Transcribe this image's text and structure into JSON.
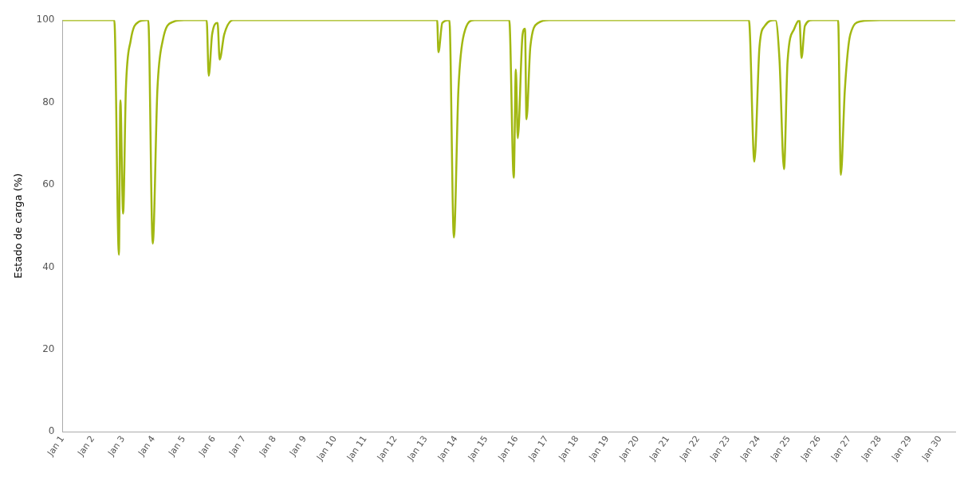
{
  "chart_data": {
    "type": "line",
    "ylabel": "Estado de carga (%)",
    "xlim": [
      "--01-01",
      "--01-30T12:00"
    ],
    "ylim": [
      0,
      100
    ],
    "yticks": [
      0,
      20,
      40,
      60,
      80,
      100
    ],
    "xticks": [
      {
        "value": "--01-01",
        "label": "Jan 1"
      },
      {
        "value": "--01-02",
        "label": "Jan 2"
      },
      {
        "value": "--01-03",
        "label": "Jan 3"
      },
      {
        "value": "--01-04",
        "label": "Jan 4"
      },
      {
        "value": "--01-05",
        "label": "Jan 5"
      },
      {
        "value": "--01-06",
        "label": "Jan 6"
      },
      {
        "value": "--01-07",
        "label": "Jan 7"
      },
      {
        "value": "--01-08",
        "label": "Jan 8"
      },
      {
        "value": "--01-09",
        "label": "Jan 9"
      },
      {
        "value": "--01-10",
        "label": "Jan 10"
      },
      {
        "value": "--01-11",
        "label": "Jan 11"
      },
      {
        "value": "--01-12",
        "label": "Jan 12"
      },
      {
        "value": "--01-13",
        "label": "Jan 13"
      },
      {
        "value": "--01-14",
        "label": "Jan 14"
      },
      {
        "value": "--01-15",
        "label": "Jan 15"
      },
      {
        "value": "--01-16",
        "label": "Jan 16"
      },
      {
        "value": "--01-17",
        "label": "Jan 17"
      },
      {
        "value": "--01-18",
        "label": "Jan 18"
      },
      {
        "value": "--01-19",
        "label": "Jan 19"
      },
      {
        "value": "--01-20",
        "label": "Jan 20"
      },
      {
        "value": "--01-21",
        "label": "Jan 21"
      },
      {
        "value": "--01-22",
        "label": "Jan 22"
      },
      {
        "value": "--01-23",
        "label": "Jan 23"
      },
      {
        "value": "--01-24",
        "label": "Jan 24"
      },
      {
        "value": "--01-25",
        "label": "Jan 25"
      },
      {
        "value": "--01-26",
        "label": "Jan 26"
      },
      {
        "value": "--01-27",
        "label": "Jan 27"
      },
      {
        "value": "--01-28",
        "label": "Jan 28"
      },
      {
        "value": "--01-29",
        "label": "Jan 29"
      },
      {
        "value": "--01-30",
        "label": "Jan 30"
      }
    ],
    "grid": false,
    "legend": false,
    "marker": "none",
    "line_style": "solid",
    "series": [
      {
        "color": "#a2b812",
        "x": [
          "--01-01T00:00",
          "--01-02T17:00",
          "--01-02T20:40",
          "--01-02T21:50",
          "--01-03T00:00",
          "--01-03T02:10",
          "--01-03T06:00",
          "--01-03T12:30",
          "--01-03T18:45",
          "--01-03T19:55",
          "--01-03T23:30",
          "--01-04T03:10",
          "--01-04T07:25",
          "--01-04T15:50",
          "--01-05T00:15",
          "--01-05T18:15",
          "--01-05T19:55",
          "--01-05T22:35",
          "--01-06T02:55",
          "--01-06T04:35",
          "--01-06T08:10",
          "--01-06T15:20",
          "--01-13T09:05",
          "--01-13T10:05",
          "--01-13T13:10",
          "--01-13T18:45",
          "--01-13T22:20",
          "--01-14T01:55",
          "--01-14T06:15",
          "--01-14T14:40",
          "--01-14T23:00",
          "--01-15T18:15",
          "--01-15T21:50",
          "--01-15T23:30",
          "--01-16T01:00",
          "--01-16T04:50",
          "--01-16T06:45",
          "--01-16T07:55",
          "--01-16T11:00",
          "--01-16T17:15",
          "--01-17T01:55",
          "--01-23T16:20",
          "--01-23T20:40",
          "--01-24T00:45",
          "--01-24T05:00",
          "--01-24T13:25",
          "--01-24T16:35",
          "--01-24T20:10",
          "--01-24T23:00",
          "--01-25T04:20",
          "--01-25T08:25",
          "--01-25T10:05",
          "--01-25T12:45",
          "--01-25T19:00",
          "--01-26T15:05",
          "--01-26T17:15",
          "--01-26T20:25",
          "--01-27T00:45",
          "--01-27T09:05",
          "--01-28T00:00",
          "--01-30T12:00"
        ],
        "values": [
          100,
          100,
          43,
          80.5,
          53,
          83,
          95,
          99.6,
          100,
          100,
          45.7,
          83,
          95,
          99.6,
          100,
          100,
          86.5,
          96.5,
          99.3,
          90.4,
          96.5,
          100,
          100,
          92.2,
          99.3,
          100,
          47.2,
          83,
          96.5,
          100,
          100,
          100,
          61.7,
          88,
          71.3,
          96.5,
          97.9,
          75.9,
          93.6,
          99.3,
          100,
          100,
          65.6,
          93.6,
          98.6,
          100,
          90.4,
          63.8,
          90,
          97.9,
          100,
          90.8,
          98.6,
          100,
          100,
          62.4,
          83,
          96.5,
          99.7,
          100,
          100
        ]
      }
    ]
  }
}
